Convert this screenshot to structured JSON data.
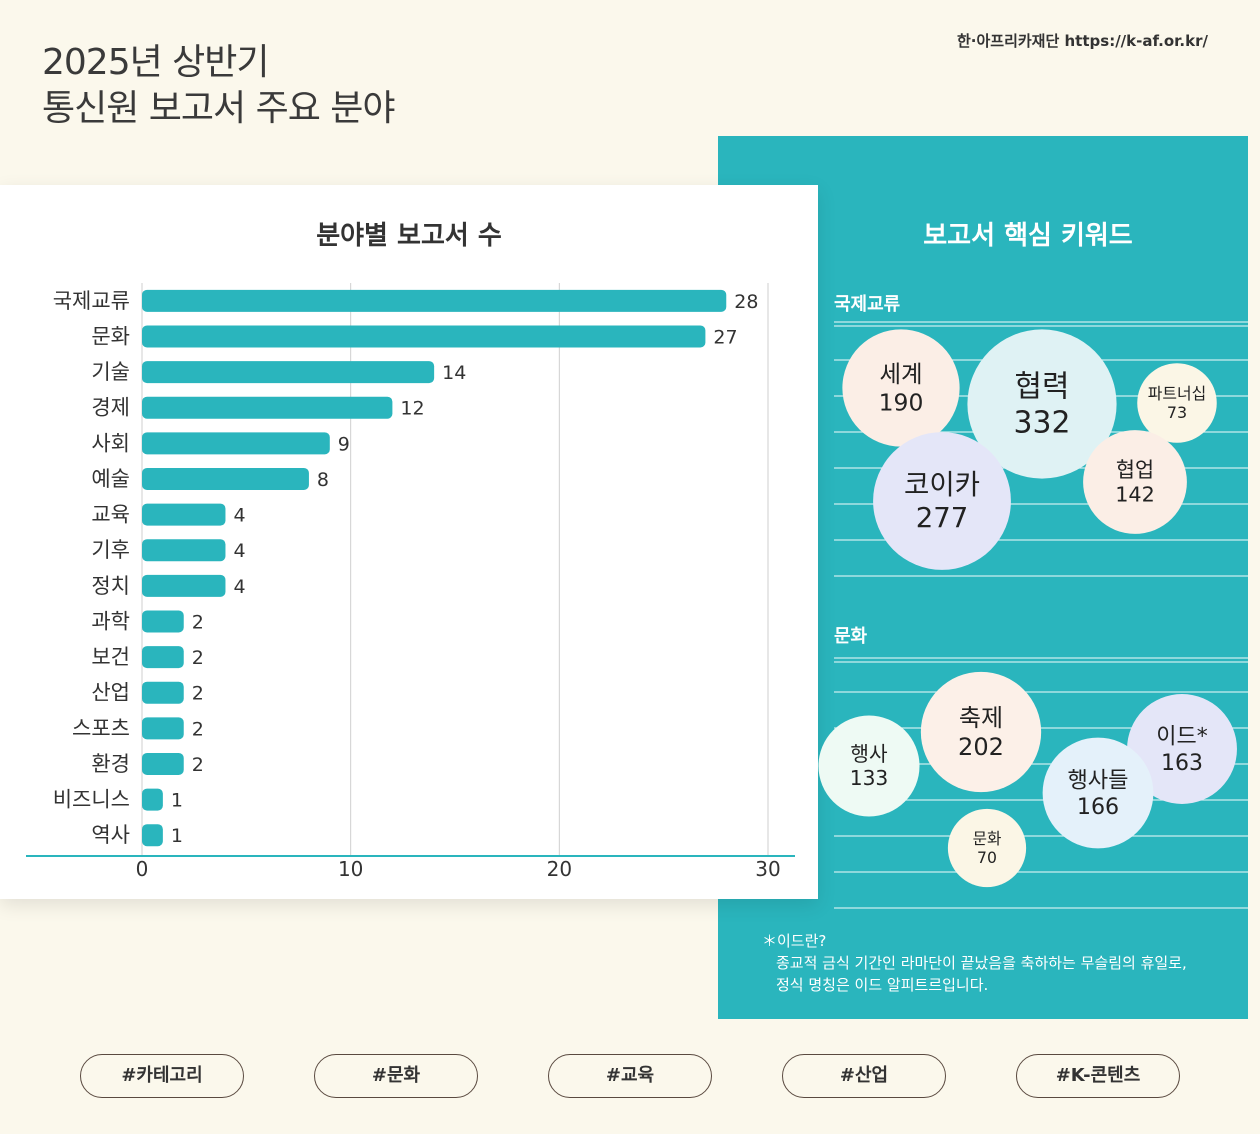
{
  "header": {
    "title_line1": "2025년 상반기",
    "title_line2": "통신원 보고서 주요 분야",
    "source": "한·아프리카재단 https://k-af.or.kr/"
  },
  "chart_data": {
    "type": "bar",
    "orientation": "horizontal",
    "title": "분야별 보고서 수",
    "categories": [
      "국제교류",
      "문화",
      "기술",
      "경제",
      "사회",
      "예술",
      "교육",
      "기후",
      "정치",
      "과학",
      "보건",
      "산업",
      "스포츠",
      "환경",
      "비즈니스",
      "역사"
    ],
    "values": [
      28,
      27,
      14,
      12,
      9,
      8,
      4,
      4,
      4,
      2,
      2,
      2,
      2,
      2,
      1,
      1
    ],
    "xlim": [
      0,
      30
    ],
    "xticks": [
      0,
      10,
      20,
      30
    ],
    "grid": true,
    "color": "#2ab5bd"
  },
  "keywords": {
    "title": "보고서 핵심 키워드",
    "groups": [
      {
        "label": "국제교류",
        "items": [
          {
            "word": "세계",
            "count": 190,
            "fill": "#fbeee6"
          },
          {
            "word": "협력",
            "count": 332,
            "fill": "#dff2f4"
          },
          {
            "word": "파트너십",
            "count": 73,
            "fill": "#fbf6e6"
          },
          {
            "word": "코이카",
            "count": 277,
            "fill": "#e4e6f8"
          },
          {
            "word": "협업",
            "count": 142,
            "fill": "#fbeee6"
          }
        ]
      },
      {
        "label": "문화",
        "items": [
          {
            "word": "행사",
            "count": 133,
            "fill": "#eefaf4"
          },
          {
            "word": "축제",
            "count": 202,
            "fill": "#fcf0e8"
          },
          {
            "word": "이드*",
            "count": 163,
            "fill": "#e4e6f8"
          },
          {
            "word": "행사들",
            "count": 166,
            "fill": "#e4f1fa"
          },
          {
            "word": "문화",
            "count": 70,
            "fill": "#fbf6e6"
          }
        ]
      }
    ]
  },
  "note": {
    "line1": "＊이드란?",
    "line2": "종교적 금식 기간인 라마단이 끝났음을 축하하는 무슬림의 휴일로,",
    "line3": "정식 명칭은 이드 알피트르입니다."
  },
  "tags": [
    "#카테고리",
    "#문화",
    "#교육",
    "#산업",
    "#K-콘텐츠"
  ],
  "colors": {
    "accent": "#2ab5bd",
    "background": "#fbf8ec"
  }
}
